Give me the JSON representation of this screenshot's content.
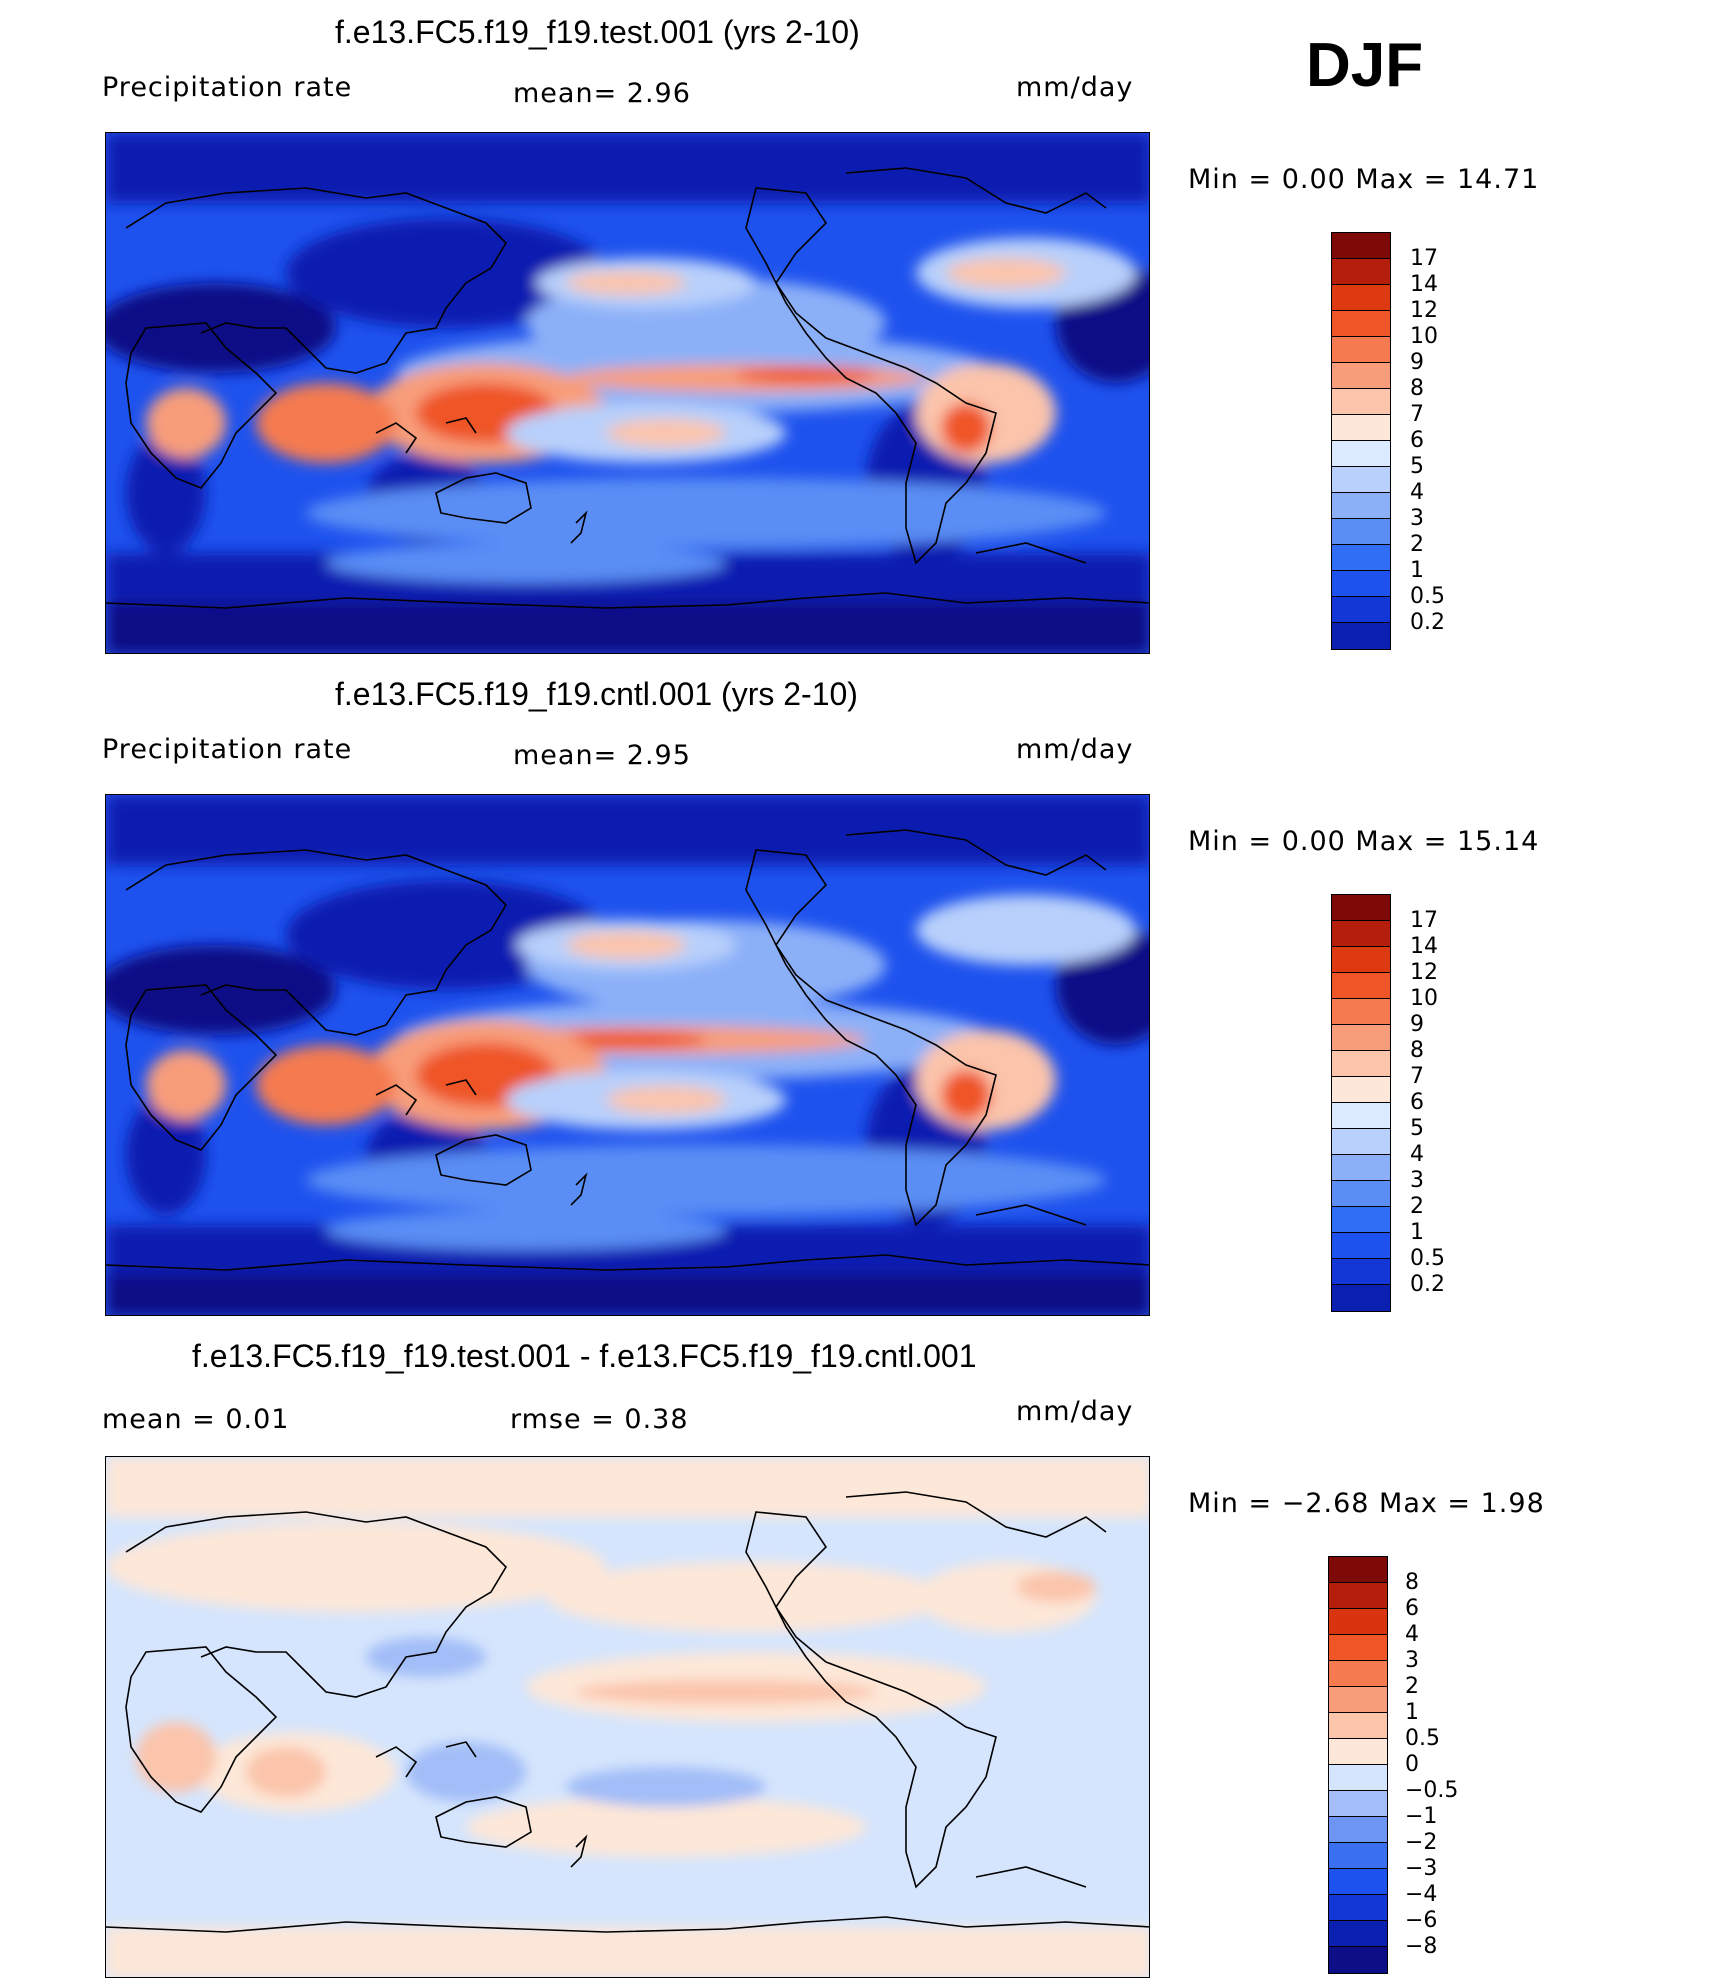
{
  "season": "DJF",
  "colors": {
    "full": [
      "#0c0f86",
      "#0b1fb0",
      "#1336d6",
      "#1e52ee",
      "#2f6ef5",
      "#5a8ef5",
      "#8cb0f8",
      "#b8d0fb",
      "#dceaff",
      "#fde7d8",
      "#fbc4ab",
      "#f89d7a",
      "#f57a50",
      "#ef5526",
      "#de3a11",
      "#b41e0a",
      "#7d0a06"
    ],
    "diff": [
      "#0c0f86",
      "#0b1fb0",
      "#1336d6",
      "#1e52ee",
      "#3a6ff0",
      "#6d96f4",
      "#a2bdf8",
      "#d5e5fd",
      "#fde7d8",
      "#fbc4ab",
      "#f89d7a",
      "#f57a50",
      "#ef5526",
      "#d93410",
      "#7d0a06"
    ]
  },
  "panels": [
    {
      "title": "f.e13.FC5.f19_f19.test.001 (yrs 2-10)",
      "left_label": "Precipitation  rate",
      "stat": "mean=     2.96",
      "units": "mm/day",
      "minmax": "Min  =     0.00  Max  =     14.71",
      "ticks": [
        "17",
        "14",
        "12",
        "10",
        "9",
        "8",
        "7",
        "6",
        "5",
        "4",
        "3",
        "2",
        "1",
        "0.5",
        "0.2"
      ]
    },
    {
      "title": "f.e13.FC5.f19_f19.cntl.001 (yrs 2-10)",
      "left_label": "Precipitation  rate",
      "stat": "mean=     2.95",
      "units": "mm/day",
      "minmax": "Min  =     0.00  Max  =     15.14",
      "ticks": [
        "17",
        "14",
        "12",
        "10",
        "9",
        "8",
        "7",
        "6",
        "5",
        "4",
        "3",
        "2",
        "1",
        "0.5",
        "0.2"
      ]
    },
    {
      "title": "f.e13.FC5.f19_f19.test.001 - f.e13.FC5.f19_f19.cntl.001",
      "left_label": "mean  =      0.01",
      "stat": "rmse  =      0.38",
      "units": "mm/day",
      "minmax": "Min  =   −2.68  Max  =      1.98",
      "ticks": [
        "8",
        "6",
        "4",
        "3",
        "2",
        "1",
        "0.5",
        "0",
        "−0.5",
        "−1",
        "−2",
        "−3",
        "−4",
        "−6",
        "−8"
      ]
    }
  ]
}
